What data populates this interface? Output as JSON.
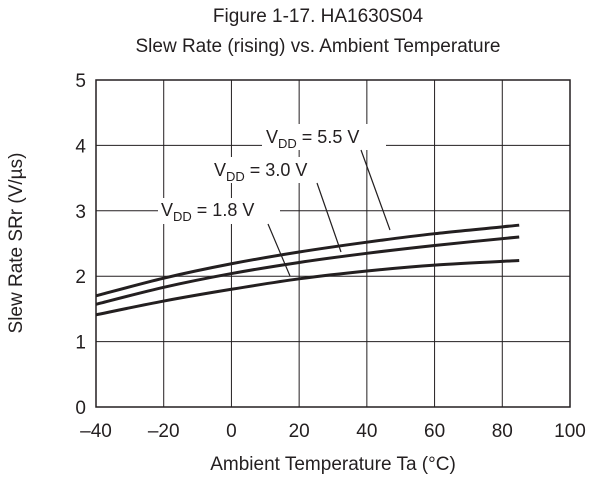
{
  "chart_data": {
    "type": "line",
    "title_line1": "Figure 1-17. HA1630S04",
    "title_line2": "Slew Rate (rising) vs. Ambient Temperature",
    "xlabel": "Ambient Temperature  Ta  (°C)",
    "ylabel": "Slew Rate SRr (V/µs)",
    "xlim": [
      -40,
      100
    ],
    "ylim": [
      0,
      5
    ],
    "x_ticks": [
      -40,
      -20,
      0,
      20,
      40,
      60,
      80,
      100
    ],
    "x_tick_labels": [
      "–40",
      "–20",
      "0",
      "20",
      "40",
      "60",
      "80",
      "100"
    ],
    "y_ticks": [
      0,
      1,
      2,
      3,
      4,
      5
    ],
    "y_tick_labels": [
      "0",
      "1",
      "2",
      "3",
      "4",
      "5"
    ],
    "grid": true,
    "line_color": "#231f20",
    "x": [
      -40,
      -20,
      0,
      20,
      40,
      60,
      85
    ],
    "series": [
      {
        "label_main": "V",
        "label_sub": "DD",
        "label_value": " = 5.5 V",
        "values": [
          1.7,
          1.97,
          2.19,
          2.37,
          2.52,
          2.65,
          2.78
        ]
      },
      {
        "label_main": "V",
        "label_sub": "DD",
        "label_value": " = 3.0 V",
        "values": [
          1.57,
          1.83,
          2.04,
          2.21,
          2.35,
          2.47,
          2.6
        ]
      },
      {
        "label_main": "V",
        "label_sub": "DD",
        "label_value": " = 1.8 V",
        "values": [
          1.41,
          1.62,
          1.8,
          1.96,
          2.08,
          2.17,
          2.24
        ]
      }
    ]
  }
}
